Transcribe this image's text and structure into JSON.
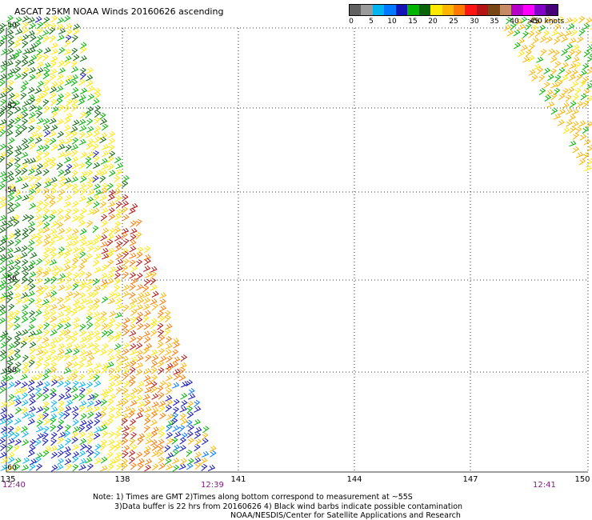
{
  "title": "ASCAT 25KM NOAA Winds 20160626 ascending",
  "legend": {
    "colors": [
      "#606060",
      "#9a9a9a",
      "#00b4f0",
      "#0078ff",
      "#1414b4",
      "#00b400",
      "#0a640a",
      "#ffe800",
      "#ffb400",
      "#ff7800",
      "#ff1414",
      "#b41414",
      "#784614",
      "#c88c64",
      "#b400c8",
      "#ff00ff",
      "#8200c8",
      "#460078"
    ],
    "labels": [
      "0",
      "5",
      "10",
      "15",
      "20",
      "25",
      "30",
      "35",
      "40",
      "45",
      ">50 knots"
    ]
  },
  "lat_labels": [
    "-50",
    "-52",
    "-54",
    "-56",
    "-58",
    "-60"
  ],
  "lon_labels": [
    "135",
    "138",
    "141",
    "144",
    "147",
    "150"
  ],
  "time_labels": [
    "12:40",
    "12:39",
    "12:41"
  ],
  "notes": {
    "line1": "Note: 1) Times are GMT 2)Times along bottom correspond to measurement at ~55S",
    "line2": "3)Data buffer is 22 hrs from 20160626 4) Black wind barbs indicate possible contamination",
    "line3": "NOAA/NESDIS/Center for Satellite Applications and Research"
  }
}
